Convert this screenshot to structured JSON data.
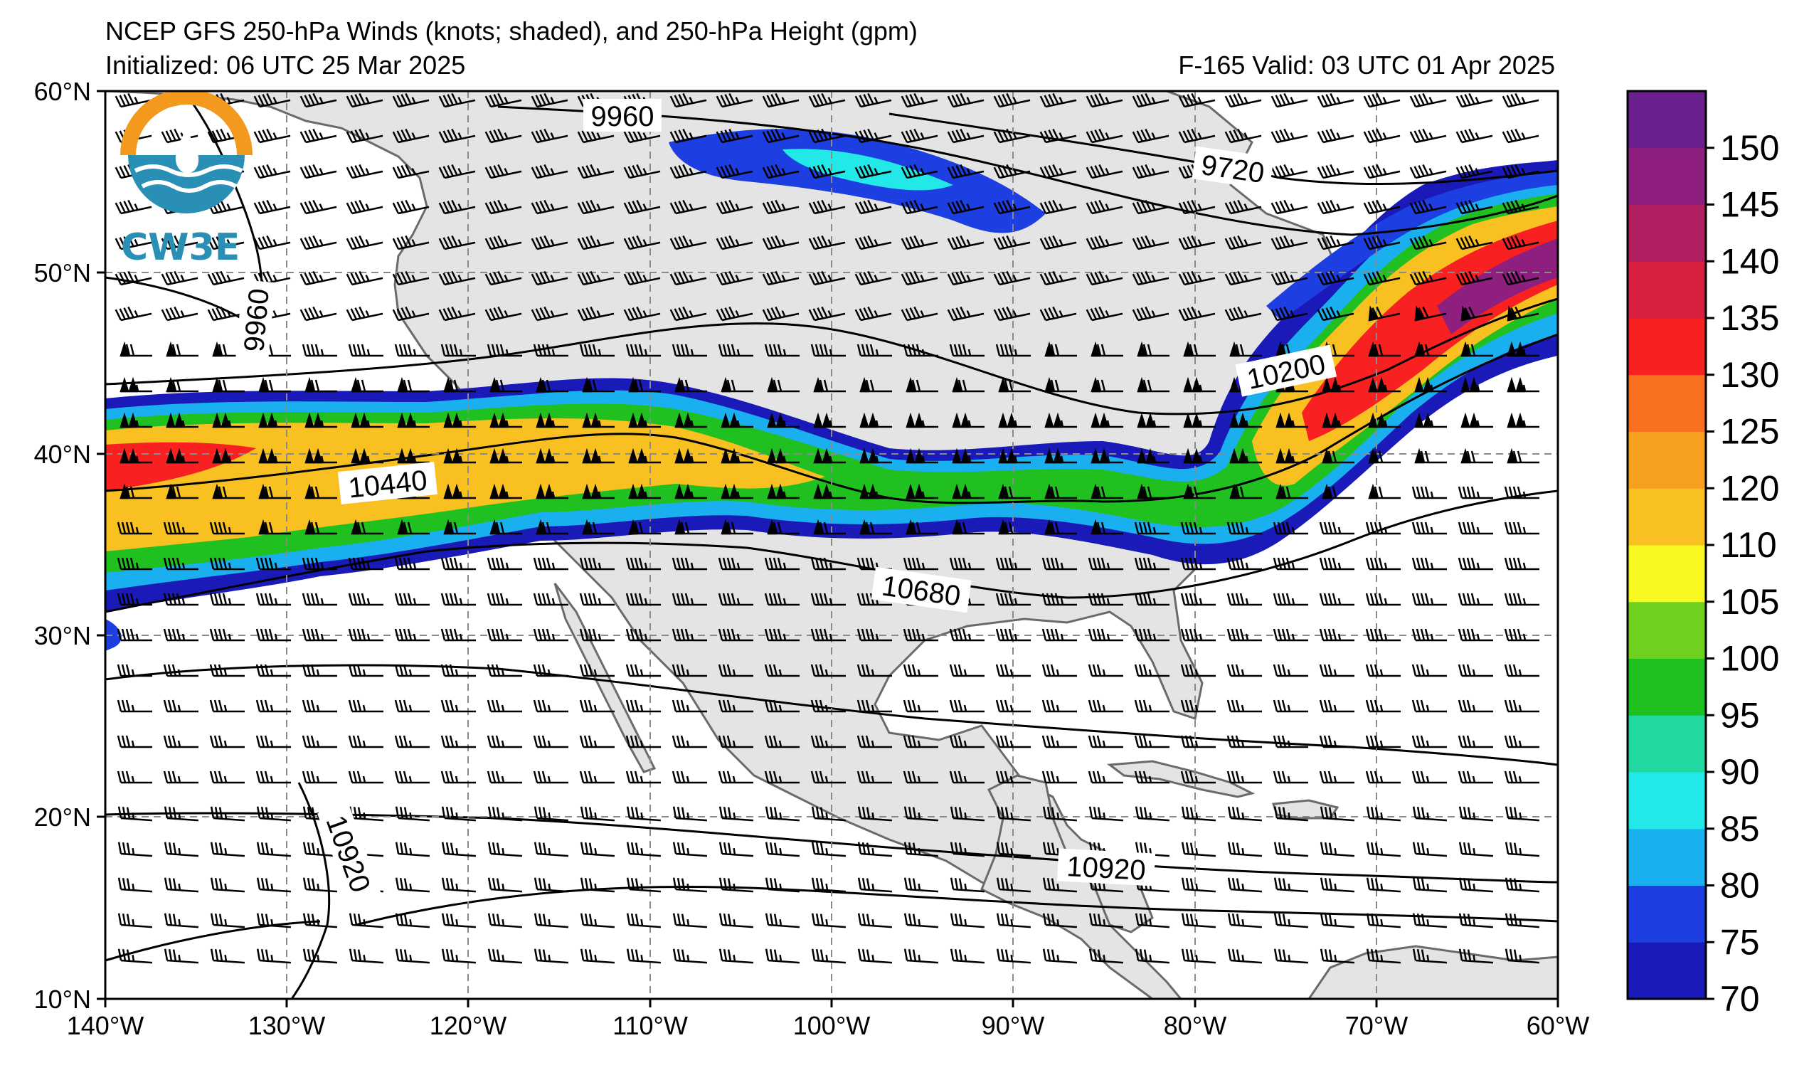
{
  "title": {
    "line1": "NCEP GFS 250-hPa Winds (knots; shaded), and 250-hPa Height (gpm)",
    "initialized": "Initialized: 06 UTC 25 Mar 2025",
    "valid": "F-165  Valid: 03 UTC 01 Apr 2025"
  },
  "logo": {
    "text": "CW3E"
  },
  "axes": {
    "x_ticks": [
      "140°W",
      "130°W",
      "120°W",
      "110°W",
      "100°W",
      "90°W",
      "80°W",
      "70°W",
      "60°W"
    ],
    "y_ticks": [
      "60°N",
      "50°N",
      "40°N",
      "30°N",
      "20°N",
      "10°N"
    ]
  },
  "colorbar": {
    "levels": [
      70,
      75,
      80,
      85,
      90,
      95,
      100,
      105,
      110,
      120,
      125,
      130,
      135,
      140,
      145,
      150,
      155
    ],
    "labels": [
      "150",
      "145",
      "140",
      "135",
      "130",
      "125",
      "120",
      "110",
      "105",
      "100",
      "95",
      "90",
      "85",
      "80",
      "75",
      "70"
    ],
    "colors": [
      "#1a1ab8",
      "#1d3ee0",
      "#1ab0ef",
      "#22e8e8",
      "#20d8a0",
      "#20c020",
      "#70d020",
      "#f8f820",
      "#f8c020",
      "#f8a020",
      "#f87020",
      "#f82020",
      "#d81f3f",
      "#b01f5f",
      "#8f1f7f",
      "#6a1f8f"
    ]
  },
  "contour_labels": [
    "9960",
    "9720",
    "9960",
    "10200",
    "10440",
    "10680",
    "10920",
    "10920"
  ],
  "colors": {
    "land": "#e4e4e4",
    "ocean": "#ffffff",
    "coast": "#6a6a6a"
  }
}
